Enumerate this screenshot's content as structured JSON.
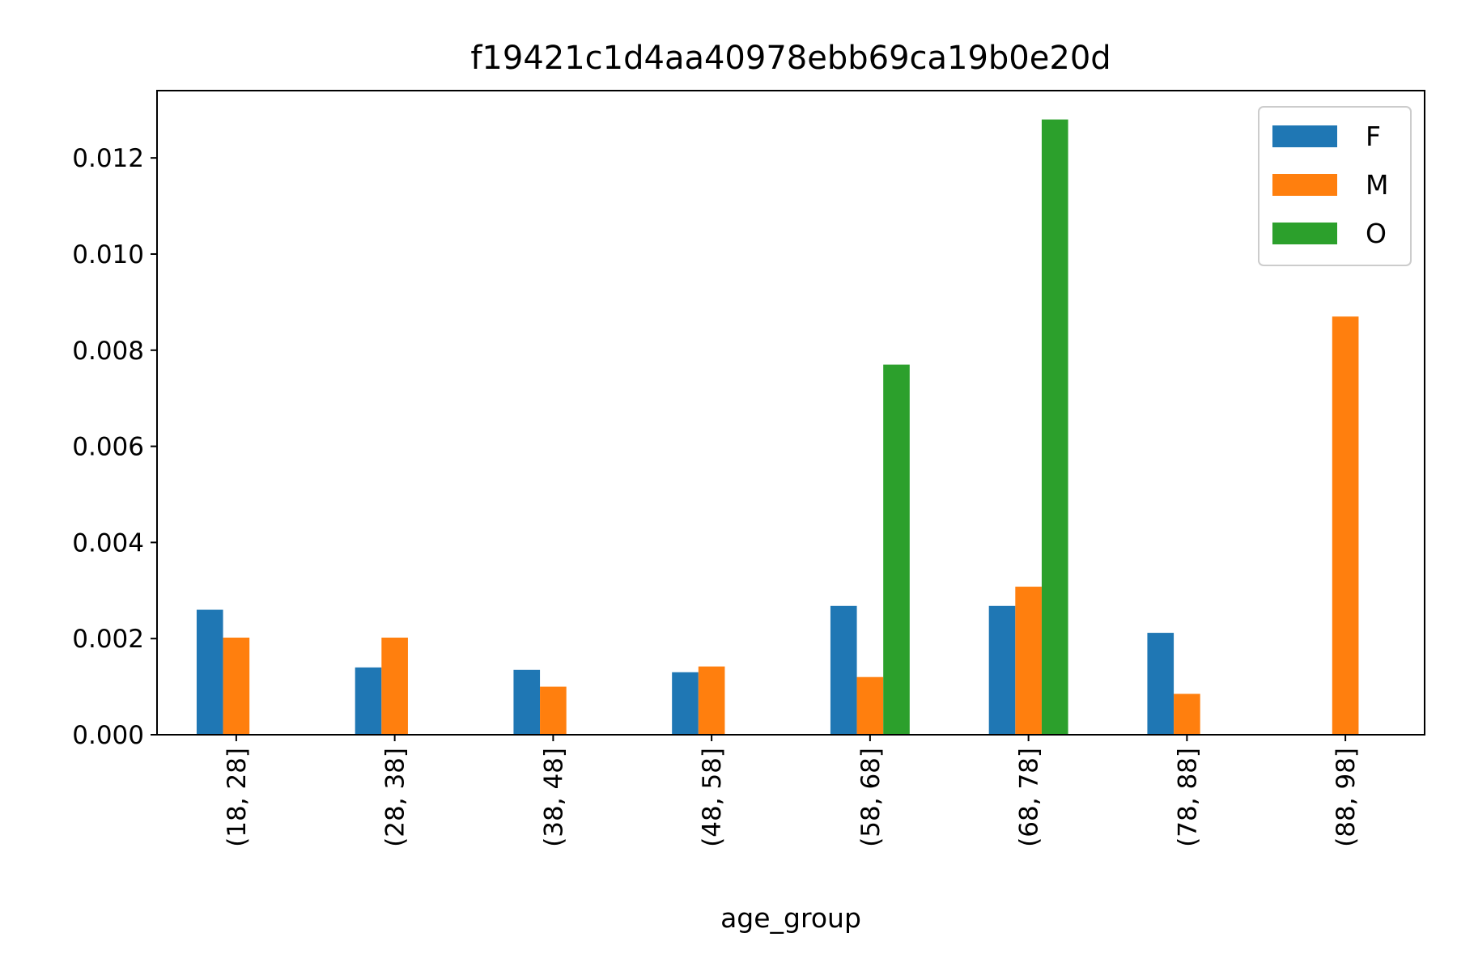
{
  "chart_data": {
    "type": "bar",
    "title": "f19421c1d4aa40978ebb69ca19b0e20d",
    "xlabel": "age_group",
    "ylabel": "",
    "categories": [
      "(18, 28]",
      "(28, 38]",
      "(38, 48]",
      "(48, 58]",
      "(58, 68]",
      "(68, 78]",
      "(78, 88]",
      "(88, 98]"
    ],
    "series": [
      {
        "name": "F",
        "color": "#1f77b4",
        "values": [
          0.0026,
          0.0014,
          0.00135,
          0.0013,
          0.00268,
          0.00268,
          0.00212,
          0
        ]
      },
      {
        "name": "M",
        "color": "#ff7f0e",
        "values": [
          0.00202,
          0.00202,
          0.001,
          0.00142,
          0.0012,
          0.00308,
          0.00085,
          0.0087
        ]
      },
      {
        "name": "O",
        "color": "#2ca02c",
        "values": [
          0,
          0,
          0,
          0,
          0.0077,
          0.0128,
          0,
          0
        ]
      }
    ],
    "ylim": [
      0,
      0.0134
    ],
    "yticks": [
      0.0,
      0.002,
      0.004,
      0.006,
      0.008,
      0.01,
      0.012
    ],
    "ytick_labels": [
      "0.000",
      "0.002",
      "0.004",
      "0.006",
      "0.008",
      "0.010",
      "0.012"
    ],
    "grid": false,
    "legend": "top-right"
  }
}
